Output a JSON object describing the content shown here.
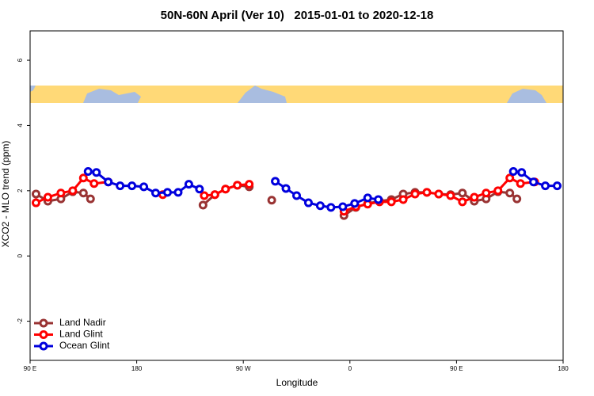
{
  "chart_data": {
    "type": "line",
    "title": "50N-60N April (Ver 10)   2015-01-01 to 2020-12-18",
    "xlabel": "Longitude",
    "ylabel": "XCO2 - MLO trend (ppm)",
    "xlim": [
      90,
      540
    ],
    "xticks": [
      {
        "value": 90,
        "label": "90 E"
      },
      180,
      {
        "value": 270,
        "label": "90 W"
      },
      {
        "value": 360,
        "label": "0"
      },
      {
        "value": 450,
        "label": "90 E"
      },
      {
        "value": 540,
        "label": "180"
      }
    ],
    "ylim": [
      -3.2,
      6.9
    ],
    "yticks": [
      -2,
      0,
      2,
      4,
      6
    ],
    "legend": "bottom-left",
    "series": [
      {
        "name": "Land Nadir",
        "color": "#993333",
        "x": [
          95,
          105,
          116,
          126,
          135,
          141,
          null,
          236,
          246,
          255,
          265,
          275,
          null,
          294,
          null,
          355,
          365,
          375,
          385,
          395,
          405,
          415,
          425,
          435,
          445,
          455,
          465,
          475,
          485,
          495,
          501
        ],
        "values": [
          1.9,
          1.68,
          1.75,
          1.97,
          1.93,
          1.75,
          null,
          1.56,
          1.88,
          2.05,
          2.17,
          2.12,
          null,
          1.71,
          null,
          1.24,
          1.49,
          1.61,
          1.68,
          1.73,
          1.9,
          1.95,
          1.95,
          1.9,
          1.88,
          1.93,
          1.68,
          1.75,
          1.97,
          1.93,
          1.75
        ]
      },
      {
        "name": "Land Glint",
        "color": "#ff0000",
        "x": [
          95,
          105,
          116,
          126,
          135,
          144,
          156,
          null,
          202,
          null,
          237,
          246,
          255,
          265,
          275,
          null,
          355,
          365,
          375,
          385,
          395,
          405,
          415,
          425,
          435,
          445,
          455,
          465,
          475,
          485,
          495,
          504,
          516
        ],
        "values": [
          1.63,
          1.8,
          1.93,
          2.0,
          2.39,
          2.22,
          2.27,
          null,
          1.88,
          null,
          1.85,
          1.88,
          2.05,
          2.17,
          2.2,
          null,
          1.37,
          1.51,
          1.59,
          1.66,
          1.66,
          1.73,
          1.9,
          1.95,
          1.9,
          1.85,
          1.66,
          1.8,
          1.93,
          2.0,
          2.39,
          2.22,
          2.27
        ]
      },
      {
        "name": "Ocean Glint",
        "color": "#0000dd",
        "x": [
          139,
          146,
          156,
          166,
          176,
          186,
          196,
          206,
          215,
          224,
          233,
          null,
          297,
          306,
          315,
          325,
          335,
          344,
          354,
          364,
          375,
          384,
          null,
          498,
          505,
          515,
          525,
          535
        ],
        "values": [
          2.59,
          2.56,
          2.27,
          2.15,
          2.15,
          2.12,
          1.93,
          1.95,
          1.95,
          2.2,
          2.05,
          null,
          2.29,
          2.07,
          1.85,
          1.63,
          1.54,
          1.49,
          1.51,
          1.61,
          1.78,
          1.73,
          null,
          2.59,
          2.56,
          2.27,
          2.15,
          2.15
        ]
      }
    ]
  }
}
